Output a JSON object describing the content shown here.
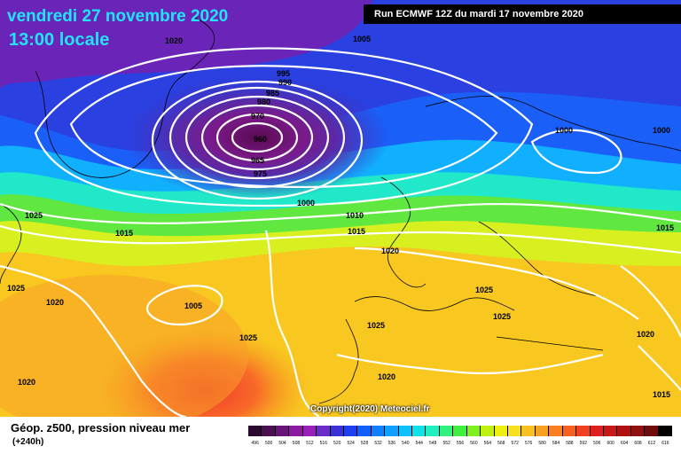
{
  "header": {
    "date": "vendredi 27 novembre 2020",
    "time": "13:00 locale",
    "run": "Run ECMWF 12Z du mardi 17 novembre 2020"
  },
  "footer": {
    "field": "Géop. z500, pression niveau mer",
    "lead": "(+240h)",
    "copyright": "Copyright(2020) Meteociel.fr"
  },
  "scale": {
    "values": [
      "496",
      "500",
      "504",
      "508",
      "512",
      "516",
      "520",
      "524",
      "528",
      "532",
      "536",
      "540",
      "544",
      "548",
      "552",
      "556",
      "560",
      "564",
      "568",
      "572",
      "576",
      "580",
      "584",
      "588",
      "592",
      "596",
      "600",
      "604",
      "608",
      "612",
      "616"
    ],
    "colors": [
      "#2a0a2e",
      "#4a1050",
      "#6a147a",
      "#8a1aa0",
      "#9820b8",
      "#6a2cc8",
      "#3a30d8",
      "#1e40f0",
      "#1060ff",
      "#1080ff",
      "#10a0ff",
      "#10c0f8",
      "#10e0e8",
      "#20f0c0",
      "#30f080",
      "#40f040",
      "#80f020",
      "#c0f010",
      "#f0f010",
      "#f8e020",
      "#f8c020",
      "#f8a020",
      "#f88020",
      "#f86020",
      "#f04020",
      "#e02020",
      "#c81818",
      "#b01010",
      "#901010",
      "#700a0a",
      "#000000"
    ]
  },
  "isobars": [
    "1020",
    "1005",
    "995",
    "990",
    "985",
    "980",
    "970",
    "960",
    "965",
    "975",
    "1000",
    "1010",
    "1015",
    "1020",
    "1025",
    "1025",
    "1025",
    "1000",
    "1000",
    "1015",
    "1025",
    "1015",
    "1020",
    "1025",
    "1005",
    "1025",
    "1020",
    "1020",
    "1020",
    "1015"
  ]
}
